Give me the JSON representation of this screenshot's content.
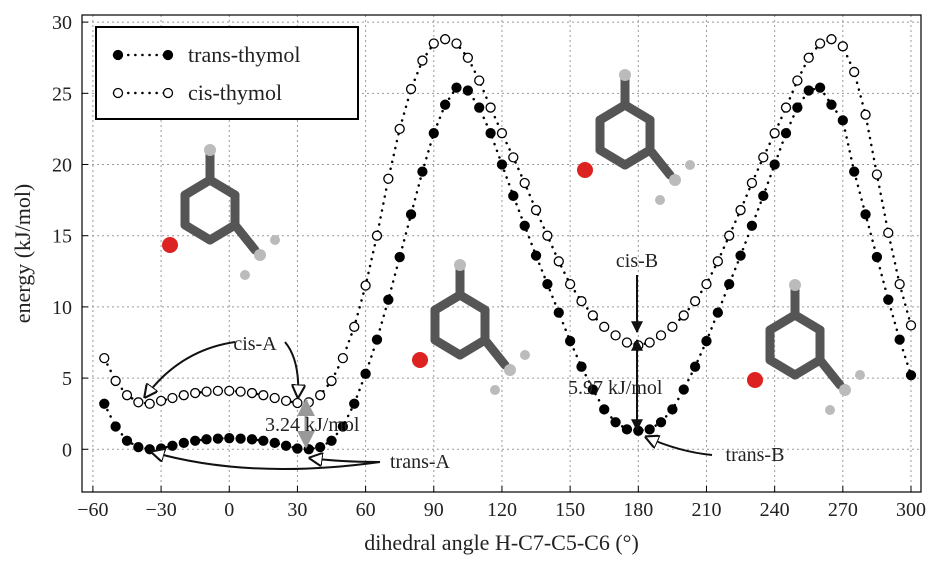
{
  "chart_data": {
    "type": "line",
    "x_label": "dihedral angle H-C7-C5-C6 (°)",
    "y_label": "energy (kJ/mol)",
    "x": [
      -55,
      -50,
      -45,
      -40,
      -35,
      -30,
      -25,
      -20,
      -15,
      -10,
      -5,
      0,
      5,
      10,
      15,
      20,
      25,
      30,
      35,
      40,
      45,
      50,
      55,
      60,
      65,
      70,
      75,
      80,
      85,
      90,
      95,
      100,
      105,
      110,
      115,
      120,
      125,
      130,
      135,
      140,
      145,
      150,
      155,
      160,
      165,
      170,
      175,
      180,
      185,
      190,
      195,
      200,
      205,
      210,
      215,
      220,
      225,
      230,
      235,
      240,
      245,
      250,
      255,
      260,
      265,
      270,
      275,
      280,
      285,
      290,
      295,
      300
    ],
    "series": [
      {
        "name": "trans-thymol",
        "color": "#000000",
        "filled": true,
        "values": [
          3.2,
          1.6,
          0.6,
          0.15,
          0.0,
          0.05,
          0.25,
          0.45,
          0.6,
          0.7,
          0.75,
          0.78,
          0.75,
          0.7,
          0.6,
          0.45,
          0.25,
          0.05,
          0.0,
          0.15,
          0.6,
          1.6,
          3.2,
          5.3,
          7.7,
          10.5,
          13.5,
          16.5,
          19.5,
          22.2,
          24.2,
          25.4,
          25.2,
          24.0,
          22.2,
          20.0,
          17.8,
          15.7,
          13.6,
          11.6,
          9.6,
          7.6,
          5.8,
          4.2,
          2.8,
          1.9,
          1.4,
          1.3,
          1.4,
          1.9,
          2.8,
          4.2,
          5.8,
          7.6,
          9.6,
          11.6,
          13.6,
          15.7,
          17.8,
          20.0,
          22.2,
          24.0,
          25.2,
          25.4,
          24.2,
          23.1,
          19.5,
          16.5,
          13.5,
          10.5,
          7.7,
          5.2
        ]
      },
      {
        "name": "cis-thymol",
        "color": "#000000",
        "filled": false,
        "values": [
          6.4,
          4.8,
          3.8,
          3.3,
          3.2,
          3.4,
          3.6,
          3.8,
          3.95,
          4.05,
          4.1,
          4.1,
          4.05,
          3.95,
          3.8,
          3.6,
          3.4,
          3.25,
          3.3,
          3.8,
          4.8,
          6.4,
          8.6,
          11.5,
          15.0,
          19.0,
          22.5,
          25.3,
          27.3,
          28.5,
          28.8,
          28.5,
          27.5,
          25.9,
          24.0,
          22.2,
          20.5,
          18.7,
          16.8,
          15.0,
          13.2,
          11.6,
          10.4,
          9.4,
          8.6,
          8.0,
          7.5,
          7.3,
          7.5,
          8.0,
          8.6,
          9.4,
          10.4,
          11.6,
          13.2,
          15.0,
          16.8,
          18.7,
          20.5,
          22.2,
          24.0,
          25.9,
          27.5,
          28.5,
          28.8,
          28.3,
          26.5,
          23.5,
          19.3,
          15.2,
          11.6,
          8.7
        ]
      }
    ],
    "xlim": [
      -64.8,
      304.4
    ],
    "ylim": [
      -3,
      30.5
    ],
    "xticks": [
      {
        "value": -60,
        "label": "−60"
      },
      {
        "value": -30,
        "label": "−30"
      },
      0,
      30,
      60,
      90,
      120,
      150,
      180,
      210,
      240,
      270,
      300
    ],
    "yticks": [
      0,
      5,
      10,
      15,
      20,
      25,
      30
    ],
    "grid": true,
    "legend": "upper left",
    "annotations": [
      "cis-A",
      "trans-A",
      "cis-B",
      "trans-B",
      "3.24 kJ/mol",
      "5.97 kJ/mol"
    ]
  }
}
